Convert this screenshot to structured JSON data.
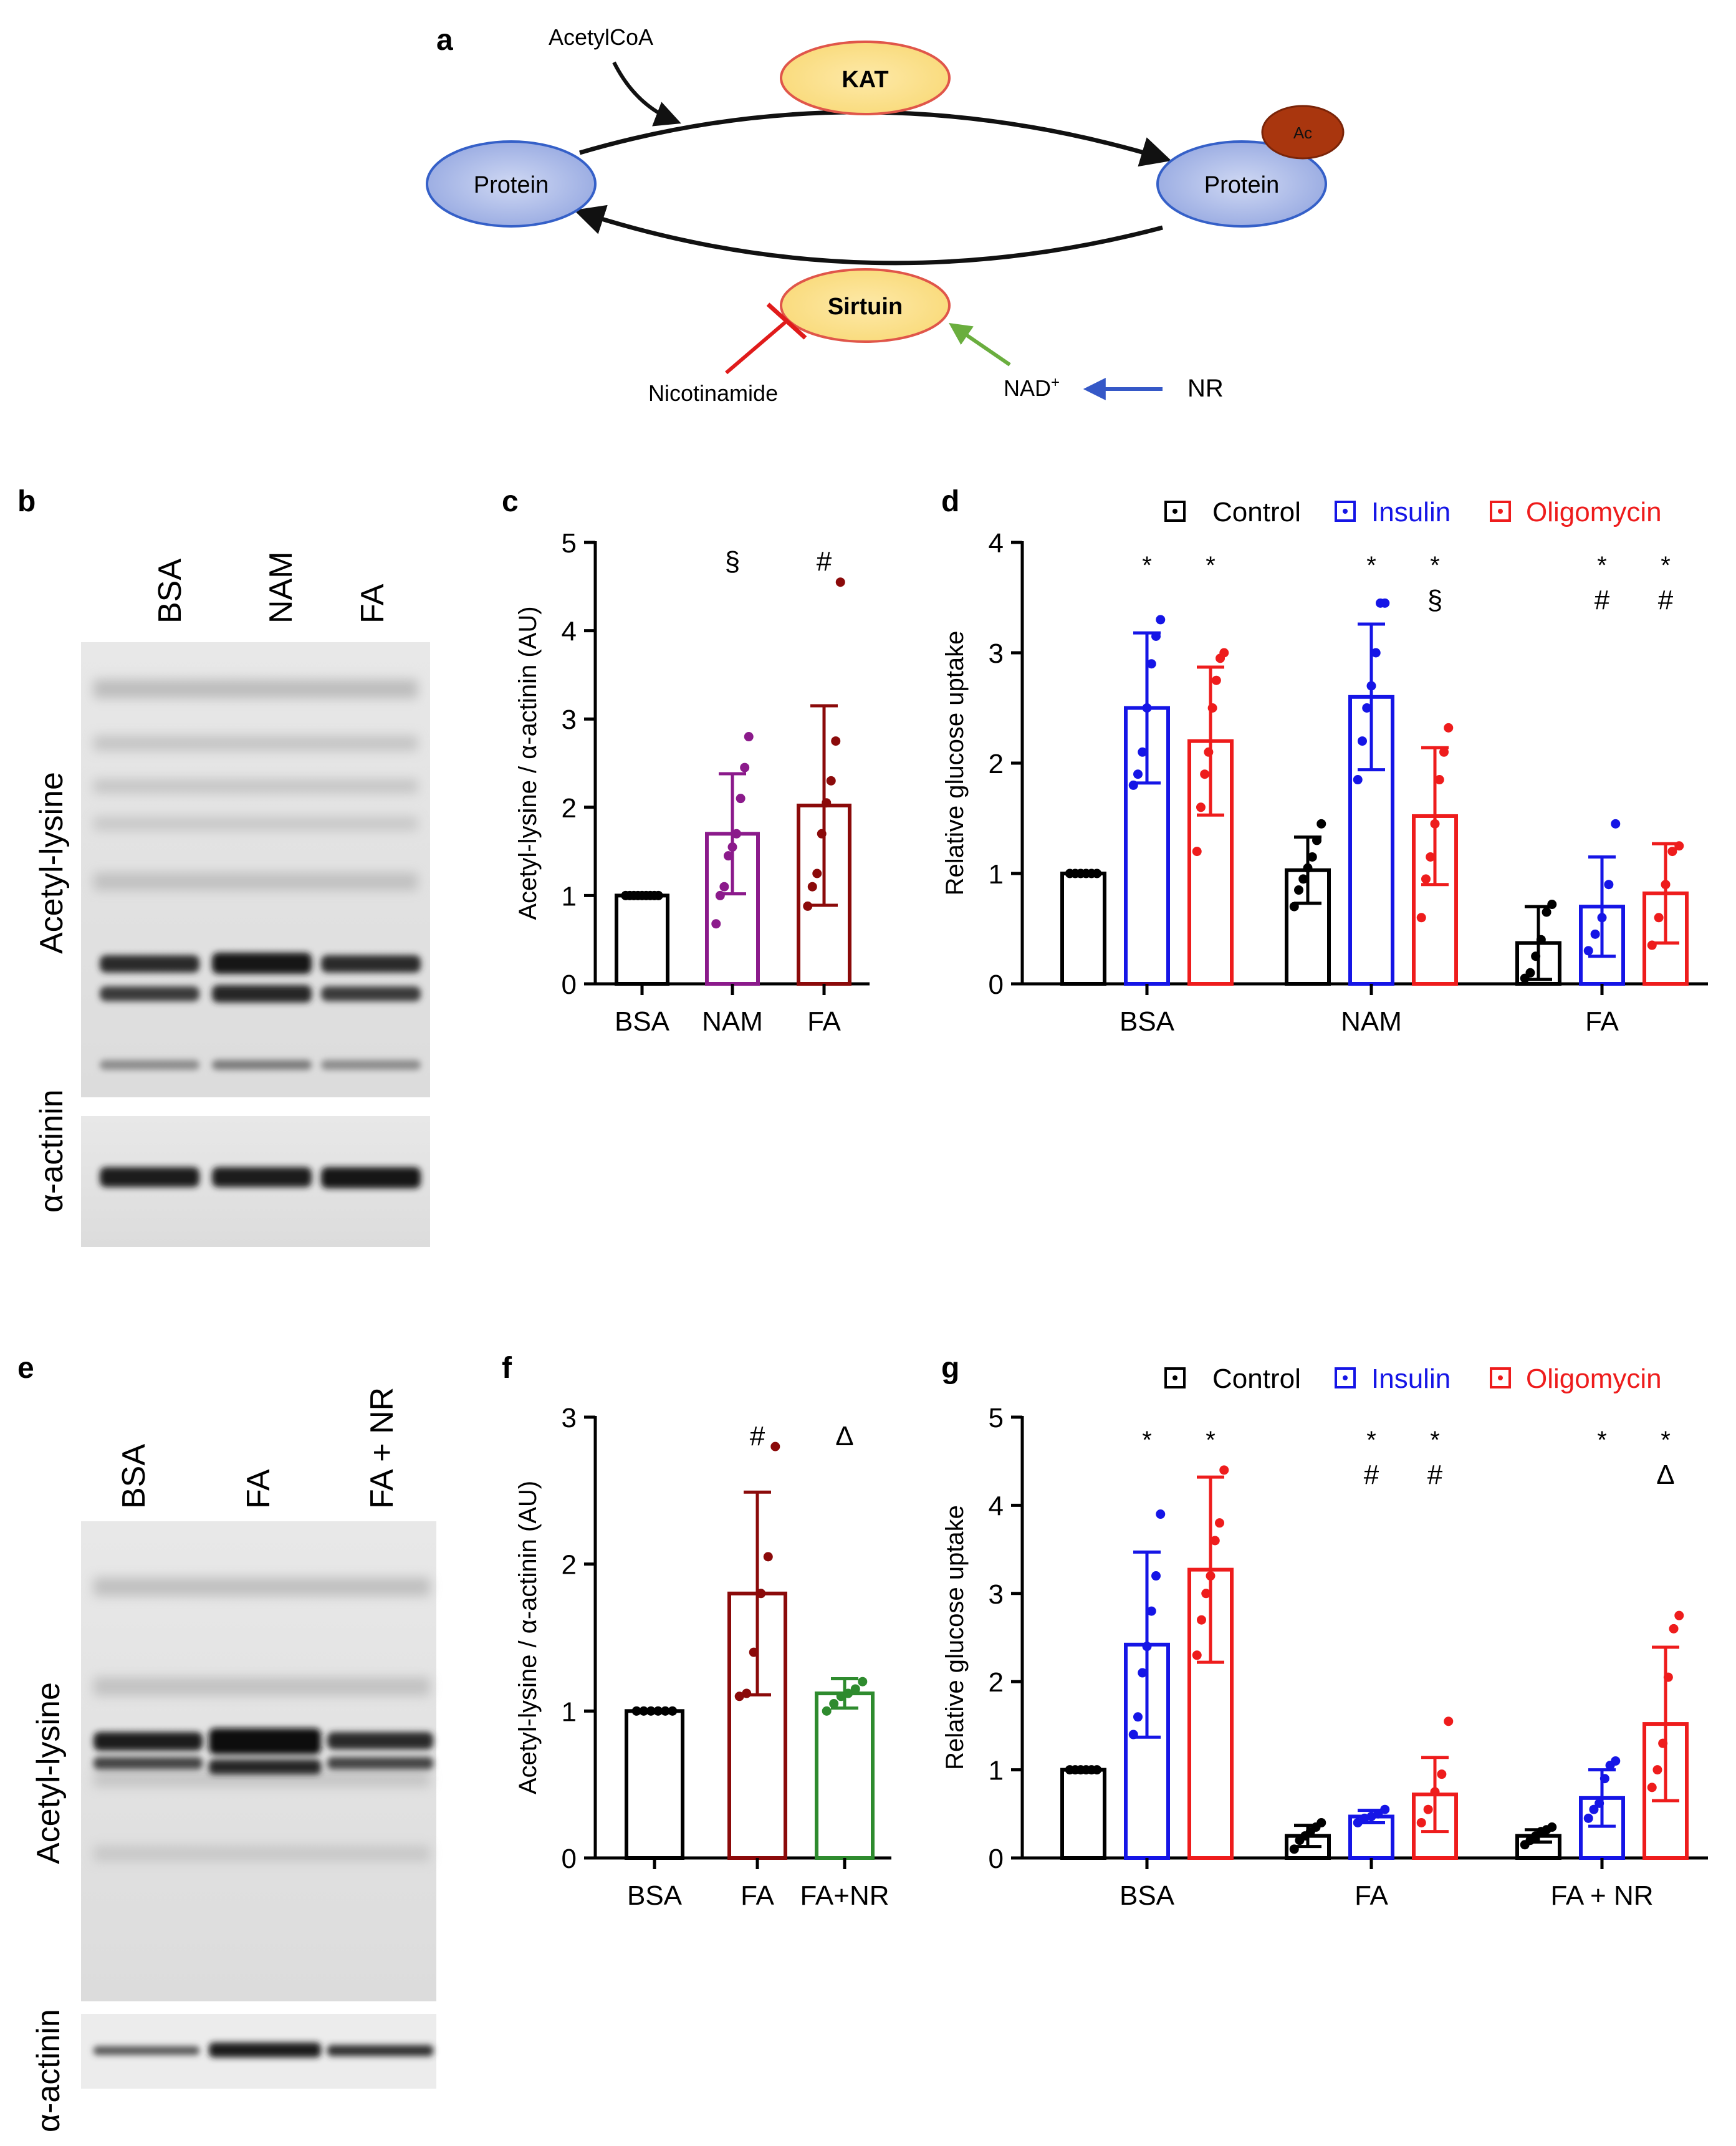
{
  "panels": {
    "a": "a",
    "b": "b",
    "c": "c",
    "d": "d",
    "e": "e",
    "f": "f",
    "g": "g"
  },
  "pathway": {
    "acetylcoa": "AcetylCoA",
    "kat": "KAT",
    "protein_left": "Protein",
    "protein_right": "Protein",
    "ac": "Ac",
    "sirtuin": "Sirtuin",
    "nicotinamide": "Nicotinamide",
    "nad": "NAD",
    "nad_sup": "+",
    "nr": "NR"
  },
  "blot_b": {
    "lanes": [
      "BSA",
      "NAM",
      "FA"
    ],
    "label_top": "Acetyl-lysine",
    "label_bottom": "α-actinin"
  },
  "blot_e": {
    "lanes": [
      "BSA",
      "FA",
      "FA + NR"
    ],
    "label_top": "Acetyl-lysine",
    "label_bottom": "α-actinin"
  },
  "legend": {
    "control": "Control",
    "insulin": "Insulin",
    "oligomycin": "Oligomycin"
  },
  "colors": {
    "black": "#000000",
    "purple": "#8b1a8b",
    "darkred": "#8b0a0a",
    "green": "#2e8b2e",
    "blue": "#1515e6",
    "red": "#ee1c1c"
  },
  "chart_data": [
    {
      "id": "c",
      "type": "bar",
      "ylabel": "Acetyl-lysine / α-actinin (AU)",
      "ylim": [
        0,
        5
      ],
      "yticks": [
        "0",
        "1",
        "2",
        "3",
        "4",
        "5"
      ],
      "categories": [
        "BSA",
        "NAM",
        "FA"
      ],
      "values": [
        1.0,
        1.7,
        2.02
      ],
      "err": [
        0,
        0.68,
        1.13
      ],
      "colors": [
        "#000000",
        "#8b1a8b",
        "#8b0a0a"
      ],
      "points": [
        [
          1,
          1,
          1,
          1,
          1,
          1,
          1,
          1,
          1
        ],
        [
          0.68,
          1.0,
          1.1,
          1.45,
          1.55,
          1.7,
          2.1,
          2.45,
          2.8
        ],
        [
          0.88,
          1.1,
          1.25,
          1.7,
          2.05,
          2.3,
          2.75,
          4.55
        ]
      ],
      "annotations": [
        "",
        "§",
        "#"
      ]
    },
    {
      "id": "d",
      "type": "bar",
      "ylabel": "Relative glucose uptake",
      "ylim": [
        0,
        4
      ],
      "yticks": [
        "0",
        "1",
        "2",
        "3",
        "4"
      ],
      "groups": [
        "BSA",
        "NAM",
        "FA"
      ],
      "series": [
        {
          "name": "Control",
          "color": "#000000",
          "values": [
            1.0,
            1.03,
            0.37
          ],
          "err": [
            0,
            0.3,
            0.33
          ],
          "points": [
            [
              1,
              1,
              1,
              1,
              1,
              1
            ],
            [
              0.7,
              0.85,
              0.95,
              1.05,
              1.15,
              1.3,
              1.45
            ],
            [
              0.05,
              0.1,
              0.25,
              0.4,
              0.65,
              0.72
            ]
          ]
        },
        {
          "name": "Insulin",
          "color": "#1515e6",
          "values": [
            2.5,
            2.6,
            0.7
          ],
          "err": [
            0.68,
            0.66,
            0.45
          ],
          "points": [
            [
              1.8,
              1.9,
              2.1,
              2.5,
              2.9,
              3.15,
              3.3
            ],
            [
              1.85,
              2.2,
              2.5,
              2.7,
              3.0,
              3.45,
              3.45
            ],
            [
              0.3,
              0.45,
              0.6,
              0.9,
              1.45
            ]
          ]
        },
        {
          "name": "Oligomycin",
          "color": "#ee1c1c",
          "values": [
            2.2,
            1.52,
            0.82
          ],
          "err": [
            0.67,
            0.62,
            0.45
          ],
          "points": [
            [
              1.2,
              1.6,
              1.9,
              2.1,
              2.5,
              2.75,
              2.95,
              3.0
            ],
            [
              0.6,
              0.95,
              1.15,
              1.45,
              1.85,
              2.1,
              2.32
            ],
            [
              0.35,
              0.6,
              0.9,
              1.2,
              1.25
            ]
          ]
        }
      ],
      "annotations": [
        [
          "",
          "*",
          "*"
        ],
        [
          "",
          "*",
          "*\n§"
        ],
        [
          "",
          "*\n#",
          "*\n#"
        ]
      ]
    },
    {
      "id": "f",
      "type": "bar",
      "ylabel": "Acetyl-lysine / α-actinin (AU)",
      "ylim": [
        0,
        3
      ],
      "yticks": [
        "0",
        "1",
        "2",
        "3"
      ],
      "categories": [
        "BSA",
        "FA",
        "FA+NR"
      ],
      "values": [
        1.0,
        1.8,
        1.12
      ],
      "err": [
        0,
        0.69,
        0.1
      ],
      "colors": [
        "#000000",
        "#8b0a0a",
        "#2e8b2e"
      ],
      "points": [
        [
          1,
          1,
          1,
          1,
          1,
          1
        ],
        [
          1.1,
          1.12,
          1.4,
          1.8,
          2.05,
          2.8
        ],
        [
          1.0,
          1.05,
          1.1,
          1.12,
          1.15,
          1.2
        ]
      ],
      "annotations": [
        "",
        "#",
        "Δ"
      ]
    },
    {
      "id": "g",
      "type": "bar",
      "ylabel": "Relative glucose uptake",
      "ylim": [
        0,
        5
      ],
      "yticks": [
        "0",
        "1",
        "2",
        "3",
        "4",
        "5"
      ],
      "groups": [
        "BSA",
        "FA",
        "FA + NR"
      ],
      "series": [
        {
          "name": "Control",
          "color": "#000000",
          "values": [
            1.0,
            0.25,
            0.25
          ],
          "err": [
            0,
            0.12,
            0.07
          ],
          "points": [
            [
              1,
              1,
              1,
              1,
              1,
              1
            ],
            [
              0.1,
              0.2,
              0.25,
              0.3,
              0.35,
              0.4
            ],
            [
              0.15,
              0.2,
              0.25,
              0.3,
              0.32,
              0.35
            ]
          ]
        },
        {
          "name": "Insulin",
          "color": "#1515e6",
          "values": [
            2.42,
            0.47,
            0.68
          ],
          "err": [
            1.05,
            0.07,
            0.32
          ],
          "points": [
            [
              1.4,
              1.6,
              2.1,
              2.4,
              2.8,
              3.2,
              3.9
            ],
            [
              0.4,
              0.45,
              0.47,
              0.5,
              0.55
            ],
            [
              0.45,
              0.55,
              0.62,
              0.9,
              1.05,
              1.1
            ]
          ]
        },
        {
          "name": "Oligomycin",
          "color": "#ee1c1c",
          "values": [
            3.27,
            0.72,
            1.52
          ],
          "err": [
            1.05,
            0.42,
            0.87
          ],
          "points": [
            [
              2.3,
              2.7,
              3.0,
              3.2,
              3.6,
              3.8,
              4.4
            ],
            [
              0.4,
              0.55,
              0.75,
              0.95,
              1.55
            ],
            [
              0.8,
              1.0,
              1.3,
              2.05,
              2.6,
              2.75
            ]
          ]
        }
      ],
      "annotations": [
        [
          "",
          "*",
          "*"
        ],
        [
          "",
          "*\n#",
          "*\n#"
        ],
        [
          "",
          "*",
          "*\nΔ"
        ]
      ]
    }
  ]
}
